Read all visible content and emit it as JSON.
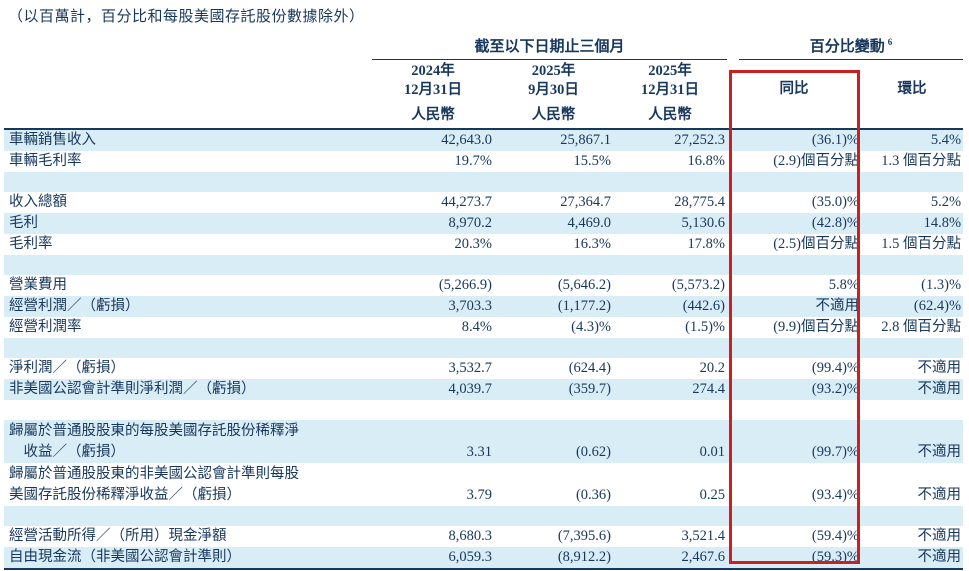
{
  "note": "（以百萬計，百分比和每股美國存託股份數據除外）",
  "colors": {
    "text": "#17375d",
    "stripe": "#d9edf7",
    "highlight_box": "#cc1f1f"
  },
  "table": {
    "group_headers": {
      "period": "截至以下日期止三個月",
      "change": "百分比變動",
      "change_sup": "6"
    },
    "columns": [
      {
        "line1": "2024年",
        "line2": "12月31日",
        "currency": "人民幣"
      },
      {
        "line1": "2025年",
        "line2": "9月30日",
        "currency": "人民幣"
      },
      {
        "line1": "2025年",
        "line2": "12月31日",
        "currency": "人民幣"
      }
    ],
    "change_columns": [
      {
        "label": "同比"
      },
      {
        "label": "環比"
      }
    ],
    "rows": [
      {
        "type": "data",
        "shade": true,
        "label": "車輛銷售收入",
        "values": [
          "42,643.0",
          "25,867.1",
          "27,252.3",
          "(36.1)%",
          "5.4%"
        ]
      },
      {
        "type": "data",
        "shade": false,
        "label": "車輛毛利率",
        "values": [
          "19.7%",
          "15.5%",
          "16.8%",
          "(2.9)個百分點",
          "1.3 個百分點"
        ]
      },
      {
        "type": "spacer",
        "shade": true
      },
      {
        "type": "data",
        "shade": false,
        "label": "收入總額",
        "values": [
          "44,273.7",
          "27,364.7",
          "28,775.4",
          "(35.0)%",
          "5.2%"
        ]
      },
      {
        "type": "data",
        "shade": true,
        "label": "毛利",
        "values": [
          "8,970.2",
          "4,469.0",
          "5,130.6",
          "(42.8)%",
          "14.8%"
        ]
      },
      {
        "type": "data",
        "shade": false,
        "label": "毛利率",
        "values": [
          "20.3%",
          "16.3%",
          "17.8%",
          "(2.5)個百分點",
          "1.5 個百分點"
        ]
      },
      {
        "type": "spacer",
        "shade": true
      },
      {
        "type": "data",
        "shade": false,
        "label": "營業費用",
        "values": [
          "(5,266.9)",
          "(5,646.2)",
          "(5,573.2)",
          "5.8%",
          "(1.3)%"
        ]
      },
      {
        "type": "data",
        "shade": true,
        "label": "經營利潤／（虧損）",
        "values": [
          "3,703.3",
          "(1,177.2)",
          "(442.6)",
          "不適用",
          "(62.4)%"
        ]
      },
      {
        "type": "data",
        "shade": false,
        "label": "經營利潤率",
        "values": [
          "8.4%",
          "(4.3)%",
          "(1.5)%",
          "(9.9)個百分點",
          "2.8 個百分點"
        ]
      },
      {
        "type": "spacer",
        "shade": true
      },
      {
        "type": "data",
        "shade": false,
        "label": "淨利潤／（虧損）",
        "values": [
          "3,532.7",
          "(624.4)",
          "20.2",
          "(99.4)%",
          "不適用"
        ]
      },
      {
        "type": "data",
        "shade": true,
        "label": "非美國公認會計準則淨利潤／（虧損）",
        "values": [
          "4,039.7",
          "(359.7)",
          "274.4",
          "(93.2)%",
          "不適用"
        ]
      },
      {
        "type": "spacer",
        "shade": false
      },
      {
        "type": "data2",
        "shade": true,
        "label": "歸屬於普通股股東的每股美國存託股份稀釋淨",
        "label2": "　收益／（虧損）",
        "values": [
          "3.31",
          "(0.62)",
          "0.01",
          "(99.7)%",
          "不適用"
        ]
      },
      {
        "type": "data2",
        "shade": false,
        "label": "歸屬於普通股股東的非美國公認會計準則每股",
        "label2": "美國存託股份稀釋淨收益／（虧損）",
        "values": [
          "3.79",
          "(0.36)",
          "0.25",
          "(93.4)%",
          "不適用"
        ]
      },
      {
        "type": "spacer",
        "shade": true
      },
      {
        "type": "data",
        "shade": false,
        "label": "經營活動所得／（所用）現金淨額",
        "values": [
          "8,680.3",
          "(7,395.6)",
          "3,521.4",
          "(59.4)%",
          "不適用"
        ]
      },
      {
        "type": "data",
        "shade": true,
        "label": "自由現金流（非美國公認會計準則）",
        "values": [
          "6,059.3",
          "(8,912.2)",
          "2,467.6",
          "(59.3)%",
          "不適用"
        ]
      }
    ]
  }
}
